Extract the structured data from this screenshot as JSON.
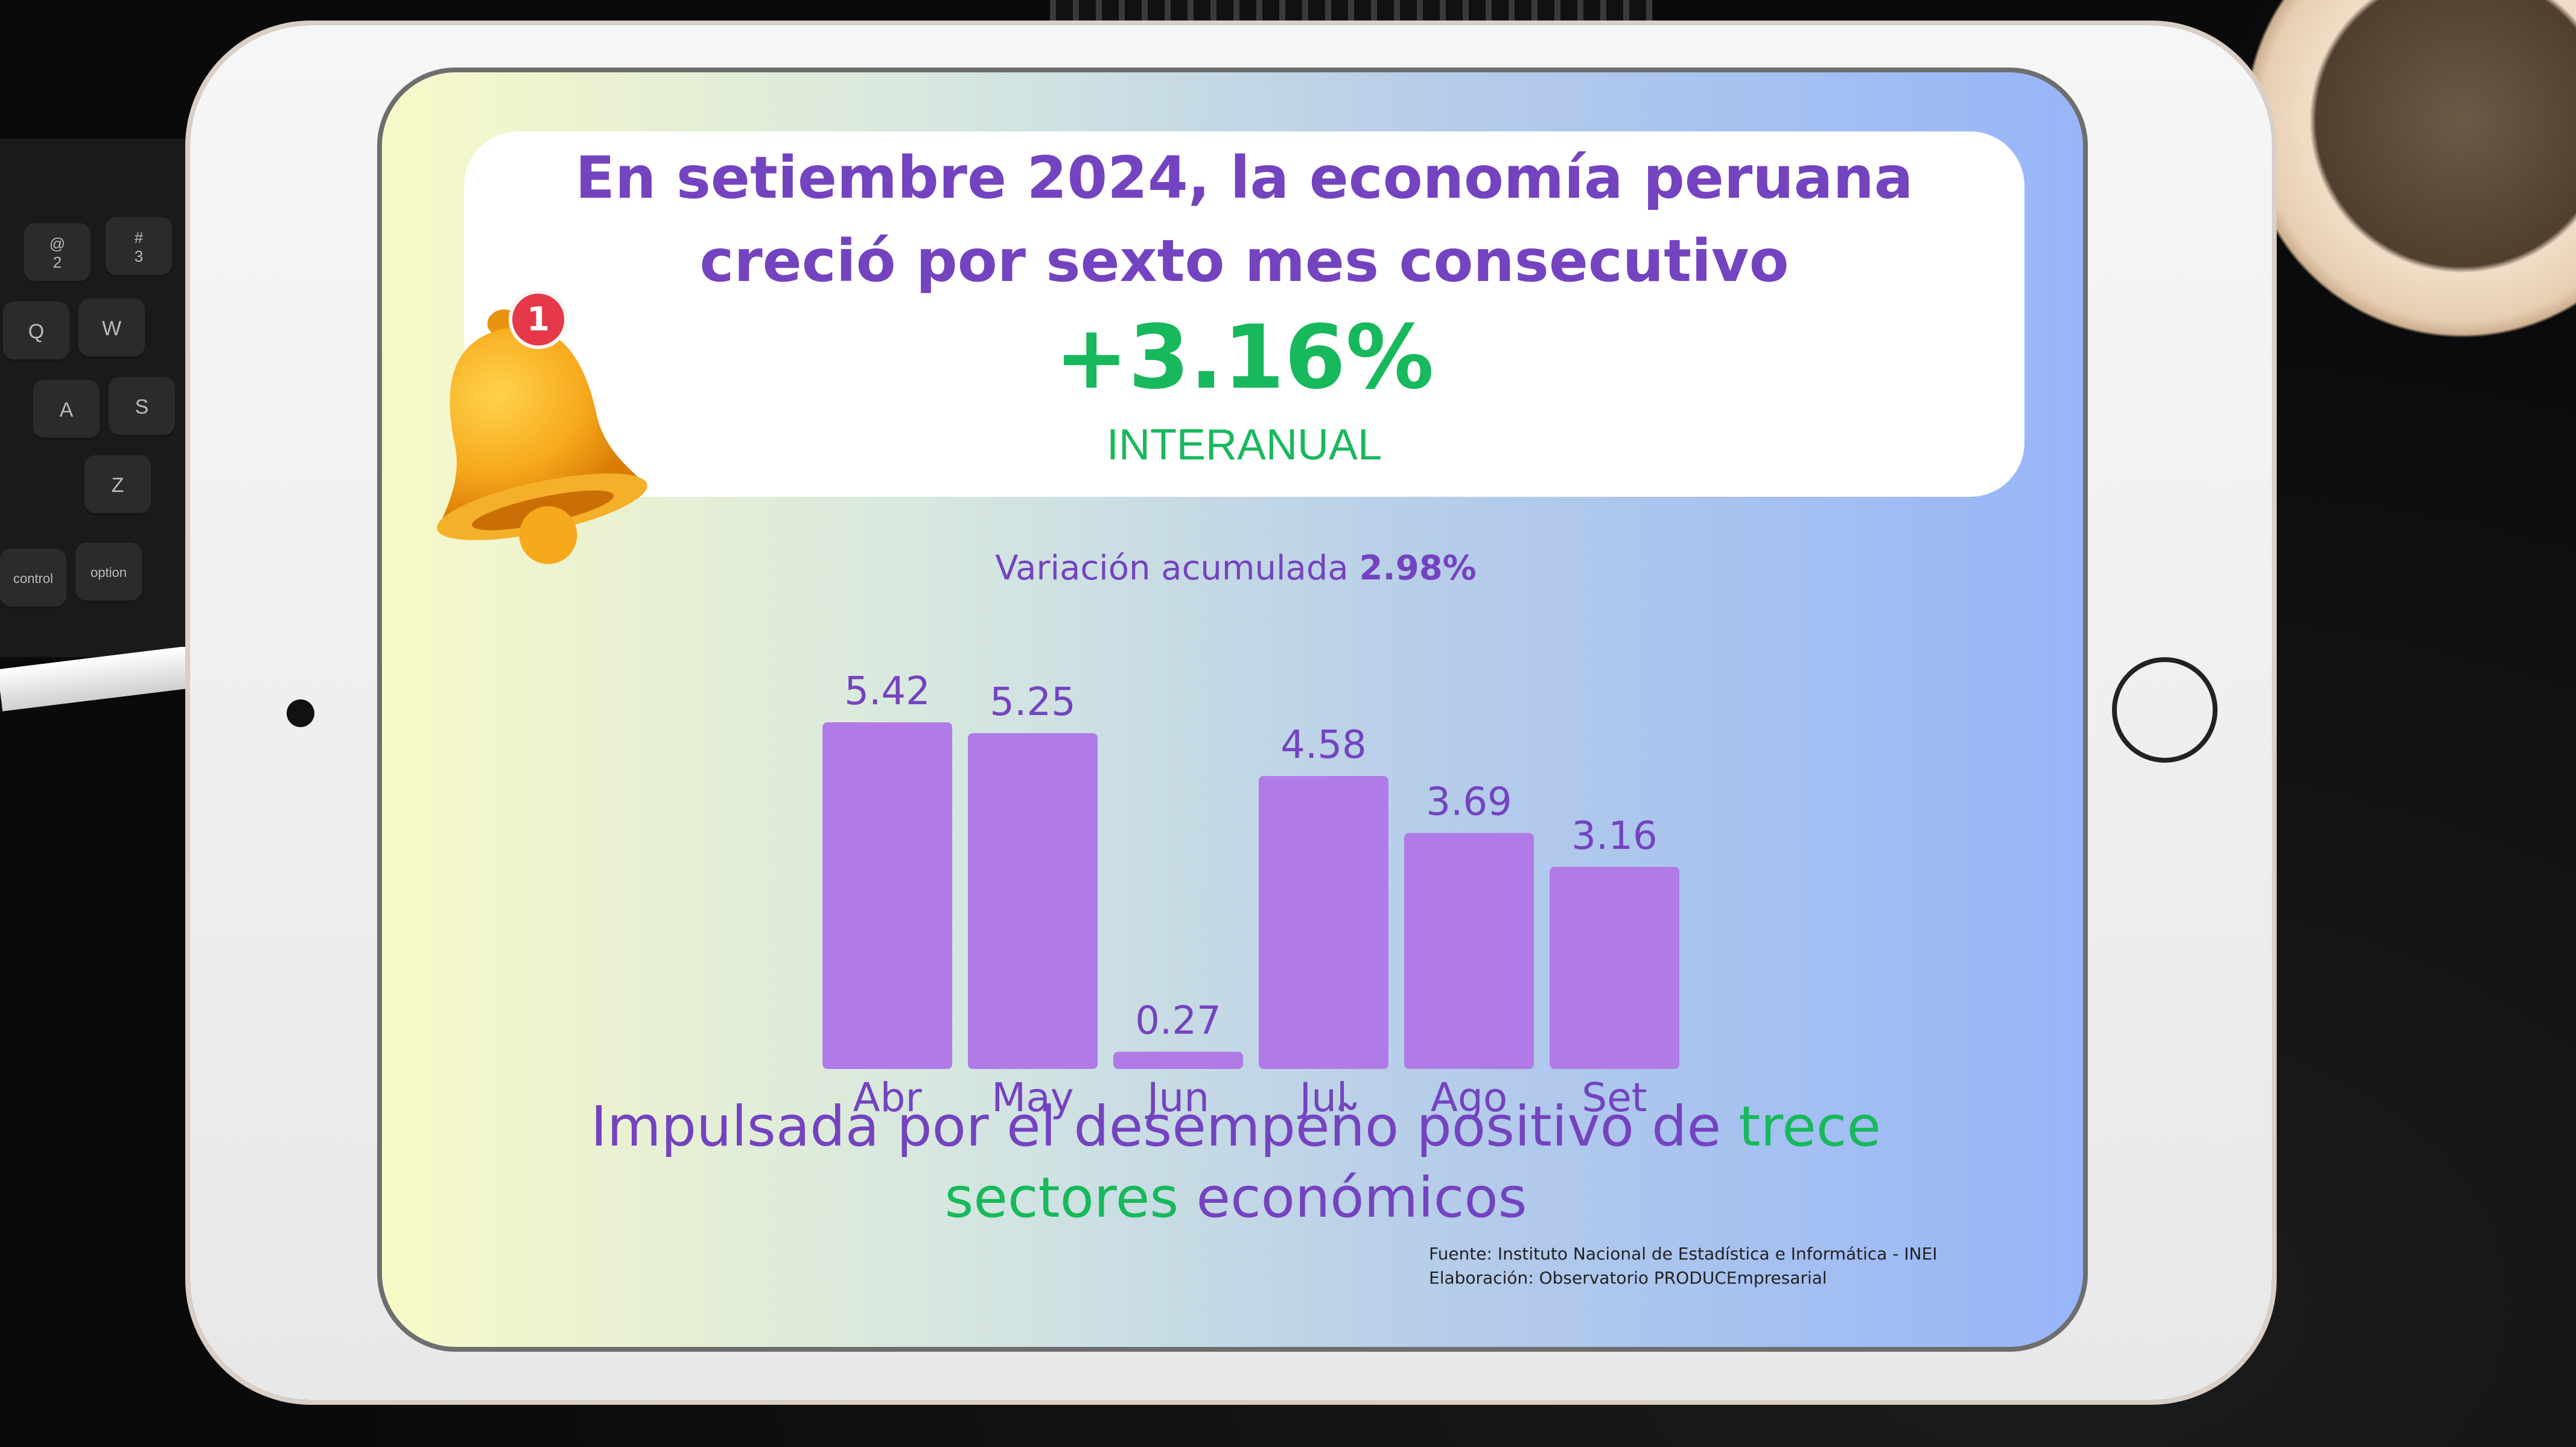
{
  "headline": {
    "line1": "En setiembre 2024, la economía peruana",
    "line2": "creció por sexto mes consecutivo"
  },
  "growth": {
    "value": "+3.16%",
    "label": "INTERANUAL"
  },
  "accumulated": {
    "label": "Variación acumulada",
    "value": "2.98%"
  },
  "notification_badge": "1",
  "footer": {
    "line1_a": "Impulsada por el desempeño positivo de ",
    "line1_b": "trece",
    "line2_a": "sectores",
    "line2_b": " económicos"
  },
  "source": {
    "fuente": "Fuente: Instituto Nacional de Estadística e Informática - INEI",
    "elaboracion": "Elaboración: Observatorio PRODUCEmpresarial"
  },
  "keys": [
    "@",
    "2",
    "#",
    "3",
    "Q",
    "W",
    "A",
    "S",
    "Z",
    "control",
    "option"
  ],
  "colors": {
    "bar": "#b07be6",
    "label": "#7443bf",
    "green": "#18b85c"
  },
  "chart_data": {
    "type": "bar",
    "categories": [
      "Abr",
      "May",
      "Jun",
      "Jul",
      "Ago",
      "Set"
    ],
    "values": [
      5.42,
      5.25,
      0.27,
      4.58,
      3.69,
      3.16
    ],
    "value_labels": [
      "5.42",
      "5.25",
      "0.27",
      "4.58",
      "3.69",
      "3.16"
    ],
    "title": "",
    "xlabel": "",
    "ylabel": "",
    "ylim": [
      0,
      5.42
    ],
    "grid": false
  }
}
